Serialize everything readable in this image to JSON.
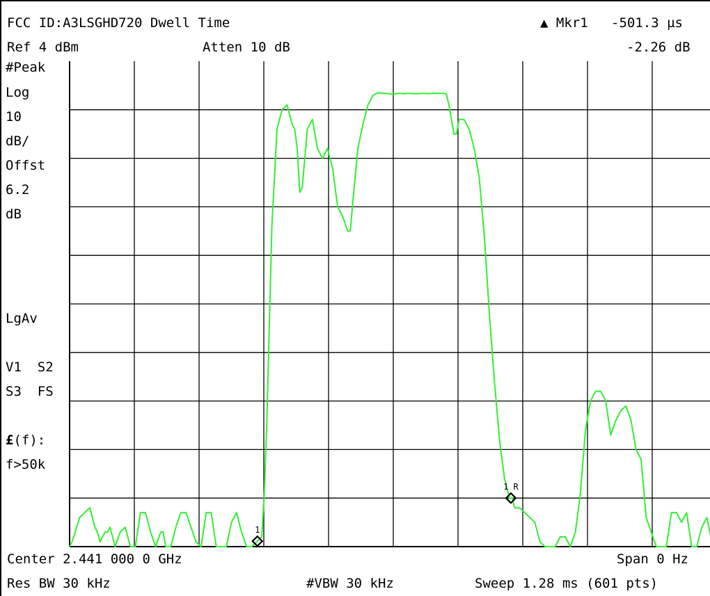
{
  "header": {
    "title": "FCC ID:A3LSGHD720 Dwell Time",
    "ref_level": "Ref 4 dBm",
    "attenuation": "Atten 10 dB",
    "marker_label": "▲ Mkr1",
    "marker_time": "-501.3 µs",
    "marker_level": "-2.26 dB"
  },
  "left_panel": {
    "detector": "#Peak",
    "scale_type": "Log",
    "scale_value": "10",
    "scale_unit": "dB/",
    "offset_label": "Offst",
    "offset_value": "6.2",
    "offset_unit": "dB",
    "averaging": "LgAv",
    "trace_line1": "V1  S2",
    "trace_line2": "S3  FS",
    "correction_prefix": "£",
    "correction_suffix": "(f):",
    "filter": "f>50k"
  },
  "footer": {
    "center": "Center 2.441 000 0 GHz",
    "span": "Span 0 Hz",
    "res_bw": "Res BW 30 kHz",
    "vbw": "#VBW 30 kHz",
    "sweep": "Sweep 1.28 ms (601 pts)"
  },
  "markers": [
    {
      "label": "1",
      "time_ms": 0.3712
    },
    {
      "label": "1 R",
      "time_ms": 0.8725
    }
  ],
  "chart_data": {
    "type": "line",
    "ylim": [
      -96,
      4
    ],
    "xlim": [
      0,
      1.28
    ],
    "y_divisions": 10,
    "x_divisions": 10,
    "grid": true,
    "trace_color": "#33ee33",
    "series": [
      {
        "x": [
          0,
          0.005,
          0.02,
          0.03,
          0.04,
          0.05,
          0.055,
          0.06,
          0.07,
          0.075,
          0.08,
          0.09,
          0.1,
          0.11,
          0.12,
          0.13,
          0.14,
          0.15,
          0.16,
          0.17,
          0.18,
          0.185,
          0.19,
          0.2,
          0.21,
          0.22,
          0.23,
          0.24,
          0.25,
          0.26,
          0.27,
          0.28,
          0.29,
          0.3,
          0.31,
          0.32,
          0.33,
          0.34,
          0.35,
          0.36,
          0.37,
          0.38,
          0.385,
          0.39,
          0.395,
          0.4,
          0.405,
          0.41,
          0.42,
          0.43,
          0.44,
          0.445,
          0.45,
          0.455,
          0.46,
          0.47,
          0.48,
          0.485,
          0.49,
          0.5,
          0.51,
          0.52,
          0.53,
          0.54,
          0.55,
          0.555,
          0.56,
          0.57,
          0.58,
          0.59,
          0.6,
          0.61,
          0.62,
          0.63,
          0.64,
          0.65,
          0.66,
          0.67,
          0.68,
          0.69,
          0.7,
          0.71,
          0.72,
          0.73,
          0.74,
          0.745,
          0.75,
          0.76,
          0.765,
          0.77,
          0.78,
          0.79,
          0.8,
          0.81,
          0.82,
          0.83,
          0.84,
          0.85,
          0.86,
          0.87,
          0.875,
          0.88,
          0.89,
          0.9,
          0.91,
          0.92,
          0.93,
          0.94,
          0.95,
          0.96,
          0.97,
          0.98,
          0.99,
          1.0,
          1.01,
          1.02,
          1.03,
          1.04,
          1.05,
          1.06,
          1.07,
          1.08,
          1.09,
          1.1,
          1.11,
          1.12,
          1.13,
          1.14,
          1.15,
          1.16,
          1.17,
          1.18,
          1.19,
          1.2,
          1.21,
          1.22,
          1.23,
          1.24,
          1.25,
          1.26,
          1.27,
          1.28
        ],
        "y": [
          -96,
          -95,
          -90,
          -89,
          -88,
          -92,
          -93,
          -95,
          -93,
          -93,
          -92,
          -96,
          -93,
          -92,
          -96,
          -96,
          -89,
          -89,
          -93,
          -96,
          -93,
          -93,
          -96,
          -96,
          -92,
          -89,
          -89,
          -92,
          -95,
          -96,
          -89,
          -89,
          -96,
          -96,
          -96,
          -91,
          -89,
          -93,
          -96,
          -96,
          -95,
          -94,
          -85,
          -70,
          -50,
          -30,
          -20,
          -10,
          -6,
          -5,
          -9,
          -10,
          -14,
          -23,
          -22,
          -10,
          -8,
          -11,
          -14,
          -16,
          -14,
          -18,
          -26,
          -28,
          -31,
          -31,
          -25,
          -14,
          -9,
          -5,
          -3,
          -2.5,
          -2.6,
          -2.7,
          -2.8,
          -2.6,
          -2.7,
          -2.6,
          -2.7,
          -2.7,
          -2.6,
          -2.7,
          -2.6,
          -2.6,
          -2.6,
          -2.8,
          -5,
          -11,
          -11,
          -8,
          -8,
          -10,
          -14,
          -20,
          -32,
          -48,
          -62,
          -74,
          -82,
          -86,
          -86,
          -88,
          -88,
          -89,
          -90,
          -91,
          -95,
          -96,
          -96,
          -96,
          -94,
          -94,
          -96,
          -93,
          -85,
          -72,
          -66,
          -64,
          -64,
          -66,
          -73,
          -70,
          -68,
          -67,
          -70,
          -76,
          -78,
          -90,
          -93,
          -96,
          -96,
          -96,
          -89,
          -89,
          -91,
          -89,
          -96,
          -96,
          -92,
          -90,
          -95,
          -96
        ]
      }
    ]
  }
}
